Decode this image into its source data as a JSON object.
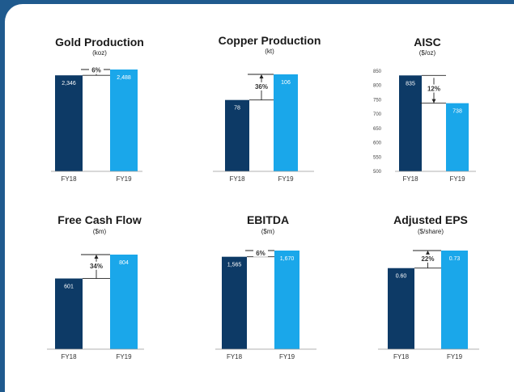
{
  "colors": {
    "fy18": "#0d3a66",
    "fy19": "#1aa7ea",
    "frame": "#1f5a8e",
    "axis": "#999999",
    "connector": "#222222"
  },
  "chart_data": [
    {
      "type": "bar",
      "title": "Gold Production",
      "unit": "(koz)",
      "categories": [
        "FY18",
        "FY19"
      ],
      "values": [
        2346,
        2488
      ],
      "value_labels": [
        "2,346",
        "2,488"
      ],
      "change": "6%",
      "direction": "up"
    },
    {
      "type": "bar",
      "title": "Copper Production",
      "unit": "(kt)",
      "categories": [
        "FY18",
        "FY19"
      ],
      "values": [
        78,
        106
      ],
      "value_labels": [
        "78",
        "106"
      ],
      "change": "36%",
      "direction": "up"
    },
    {
      "type": "bar",
      "title": "AISC",
      "unit": "($/oz)",
      "categories": [
        "FY18",
        "FY19"
      ],
      "values": [
        835,
        738
      ],
      "value_labels": [
        "835",
        "738"
      ],
      "change": "12%",
      "direction": "down",
      "ylim": [
        500,
        850
      ],
      "yticks": [
        500,
        550,
        600,
        650,
        700,
        750,
        800,
        850
      ]
    },
    {
      "type": "bar",
      "title": "Free Cash Flow",
      "unit": "($m)",
      "categories": [
        "FY18",
        "FY19"
      ],
      "values": [
        601,
        804
      ],
      "value_labels": [
        "601",
        "804"
      ],
      "change": "34%",
      "direction": "up"
    },
    {
      "type": "bar",
      "title": "EBITDA",
      "unit": "($m)",
      "categories": [
        "FY18",
        "FY19"
      ],
      "values": [
        1565,
        1670
      ],
      "value_labels": [
        "1,565",
        "1,670"
      ],
      "change": "6%",
      "direction": "up"
    },
    {
      "type": "bar",
      "title": "Adjusted EPS",
      "unit": "($/share)",
      "categories": [
        "FY18",
        "FY19"
      ],
      "values": [
        0.6,
        0.73
      ],
      "value_labels": [
        "0.60",
        "0.73"
      ],
      "change": "22%",
      "direction": "up"
    }
  ]
}
